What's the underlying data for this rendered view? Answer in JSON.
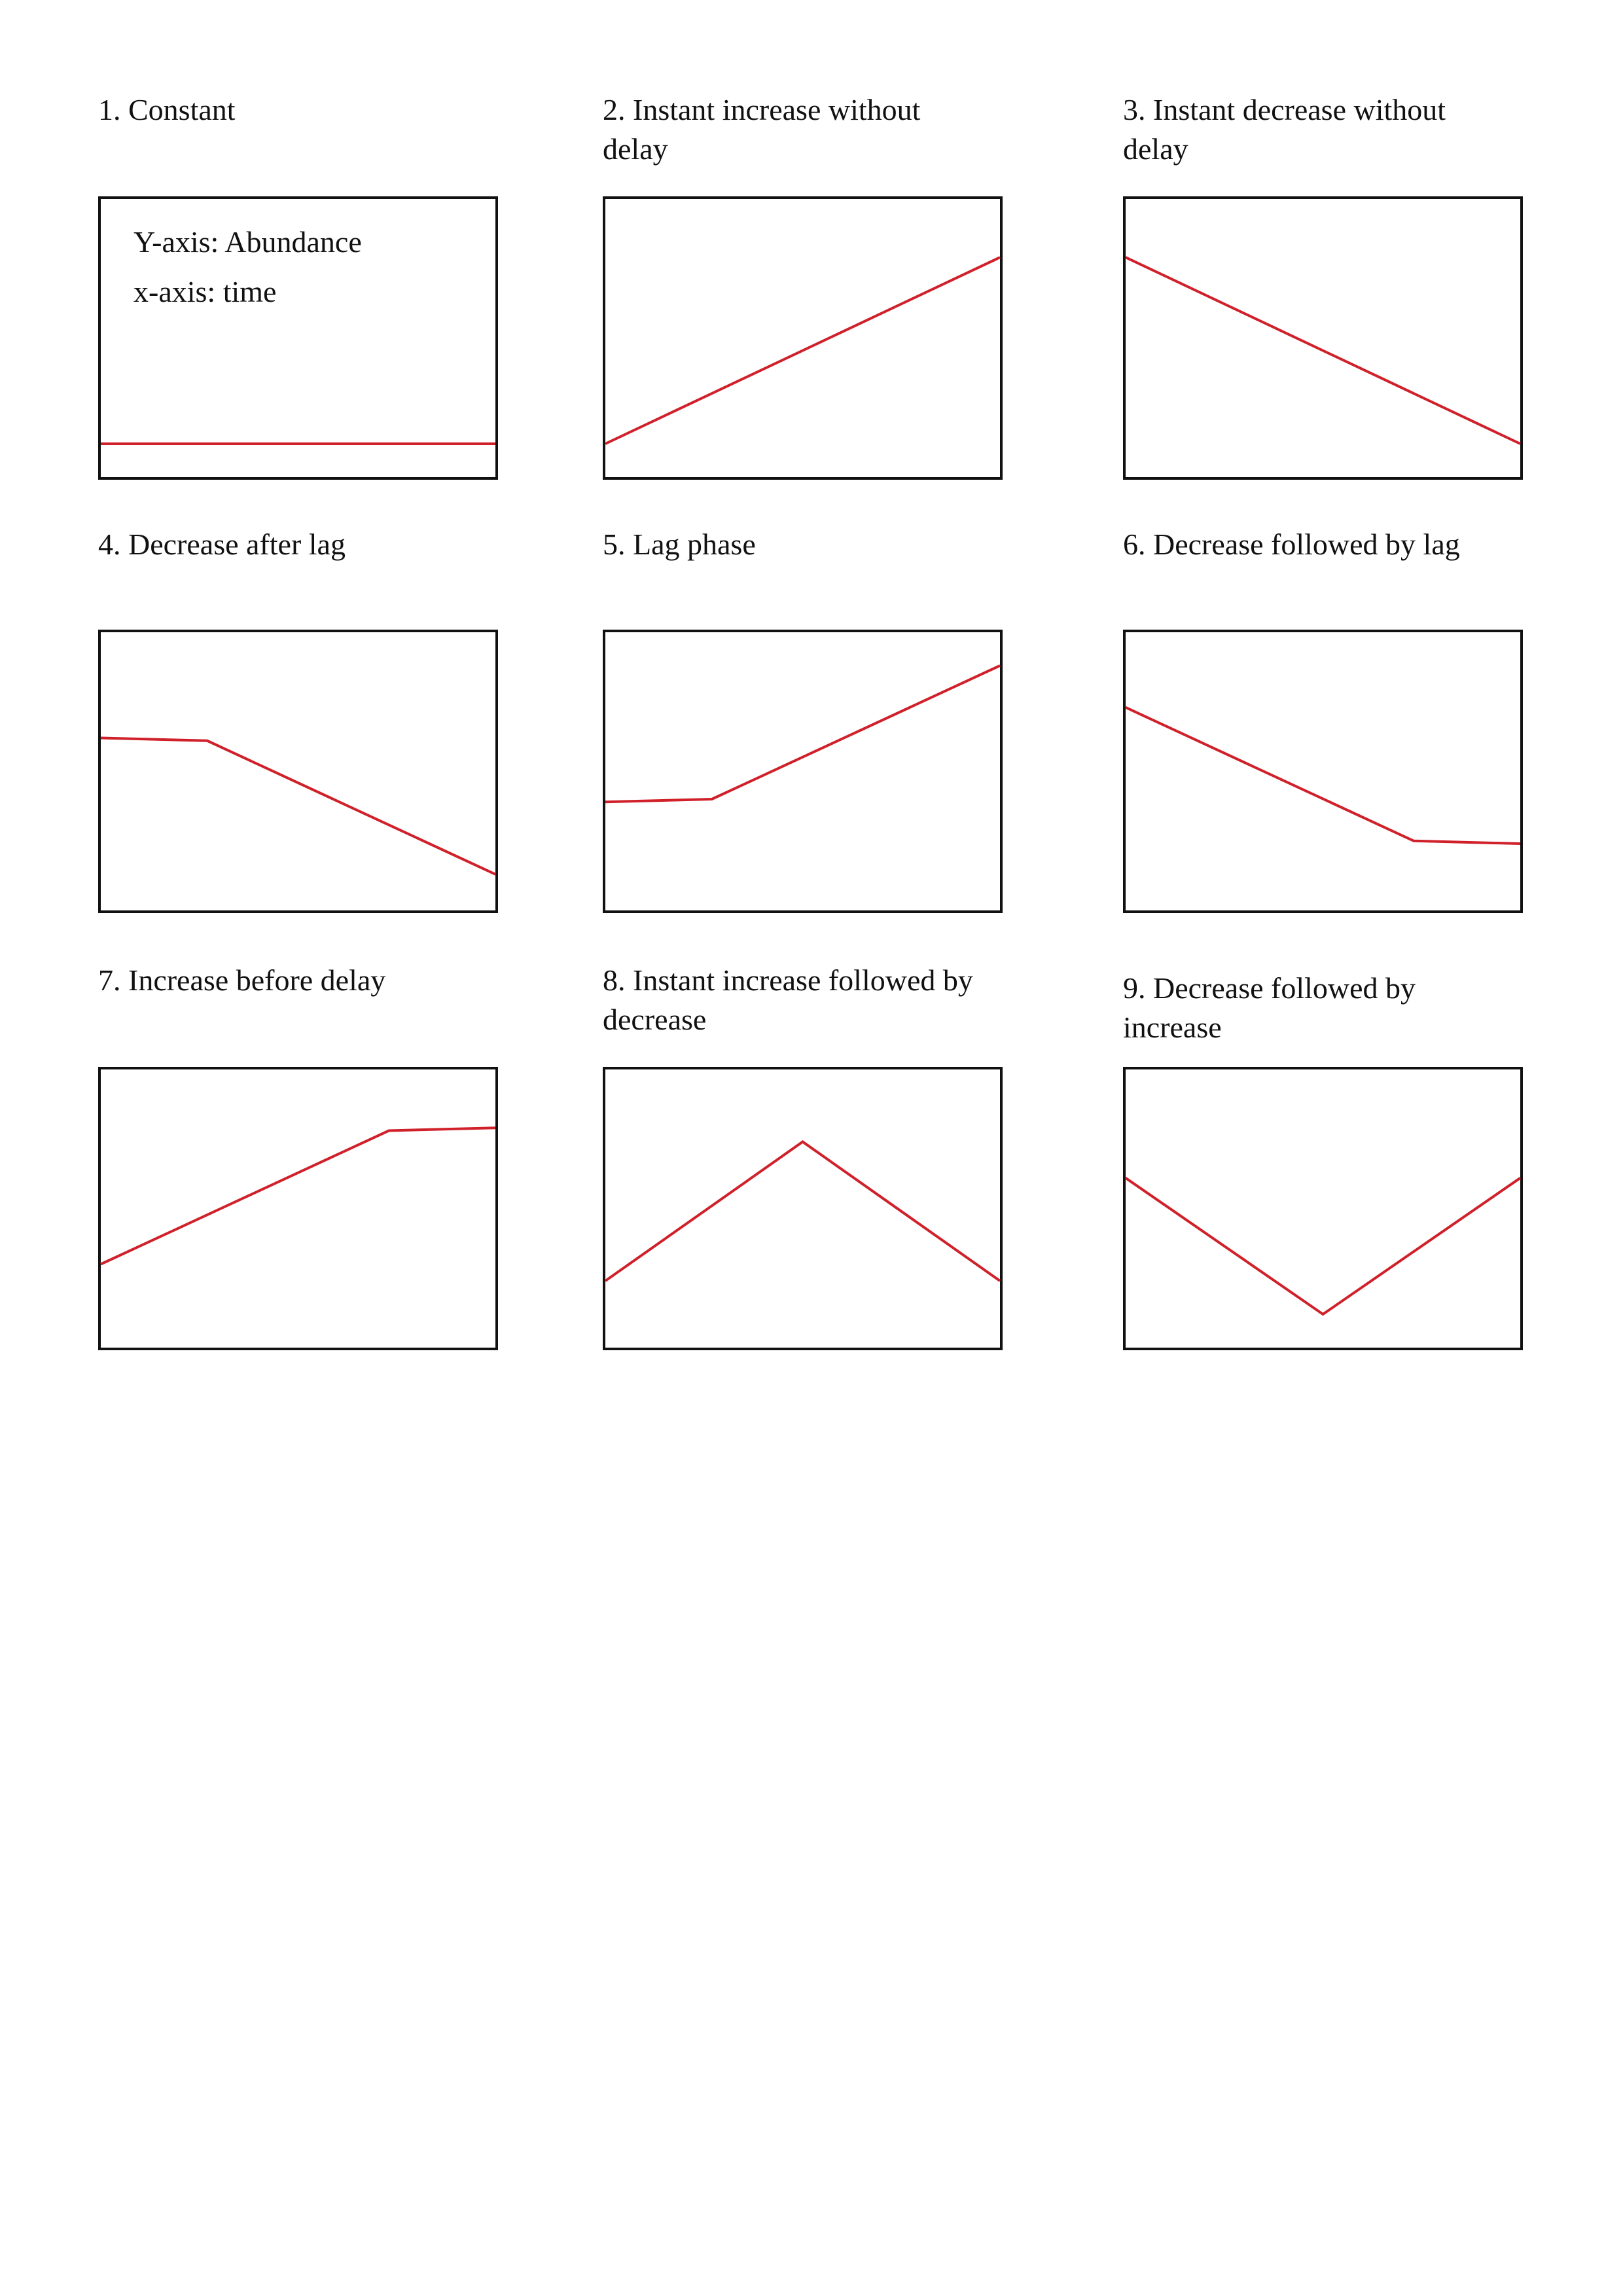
{
  "chart_data": [
    {
      "type": "line",
      "title": "1. Constant",
      "xlabel": "",
      "ylabel": "",
      "grid": false,
      "annotations": [
        "Y-axis: Abundance",
        "x-axis: time"
      ],
      "x": [
        0,
        1
      ],
      "y": [
        0.12,
        0.12
      ],
      "line_color": "#d0202a"
    },
    {
      "type": "line",
      "title": "2. Instant increase without\ndelay",
      "xlabel": "",
      "ylabel": "",
      "grid": false,
      "x": [
        0,
        1
      ],
      "y": [
        0.12,
        0.79
      ],
      "line_color": "#d0202a"
    },
    {
      "type": "line",
      "title": "3. Instant decrease without\ndelay",
      "xlabel": "",
      "ylabel": "",
      "grid": false,
      "x": [
        0,
        1
      ],
      "y": [
        0.79,
        0.12
      ],
      "line_color": "#d0202a"
    },
    {
      "type": "line",
      "title": "4. Decrease after lag",
      "xlabel": "",
      "ylabel": "",
      "grid": false,
      "x": [
        0,
        0.27,
        1
      ],
      "y": [
        0.62,
        0.61,
        0.13
      ],
      "line_color": "#d0202a"
    },
    {
      "type": "line",
      "title": "5. Lag phase",
      "xlabel": "",
      "ylabel": "",
      "grid": false,
      "x": [
        0,
        0.27,
        1
      ],
      "y": [
        0.39,
        0.4,
        0.88
      ],
      "line_color": "#d0202a"
    },
    {
      "type": "line",
      "title": "6. Decrease followed by lag",
      "xlabel": "",
      "ylabel": "",
      "grid": false,
      "x": [
        0,
        0.73,
        1
      ],
      "y": [
        0.73,
        0.25,
        0.24
      ],
      "line_color": "#d0202a"
    },
    {
      "type": "line",
      "title": "7. Increase before delay",
      "xlabel": "",
      "ylabel": "",
      "grid": false,
      "x": [
        0,
        0.73,
        1
      ],
      "y": [
        0.3,
        0.78,
        0.79
      ],
      "line_color": "#d0202a"
    },
    {
      "type": "line",
      "title": "8. Instant increase followed by\ndecrease",
      "xlabel": "",
      "ylabel": "",
      "grid": false,
      "x": [
        0,
        0.5,
        1
      ],
      "y": [
        0.24,
        0.74,
        0.24
      ],
      "line_color": "#d0202a"
    },
    {
      "type": "line",
      "title": "9. Decrease followed by\n increase",
      "xlabel": "",
      "ylabel": "",
      "grid": false,
      "x": [
        0,
        0.5,
        1
      ],
      "y": [
        0.61,
        0.12,
        0.61
      ],
      "line_color": "#d0202a"
    }
  ]
}
